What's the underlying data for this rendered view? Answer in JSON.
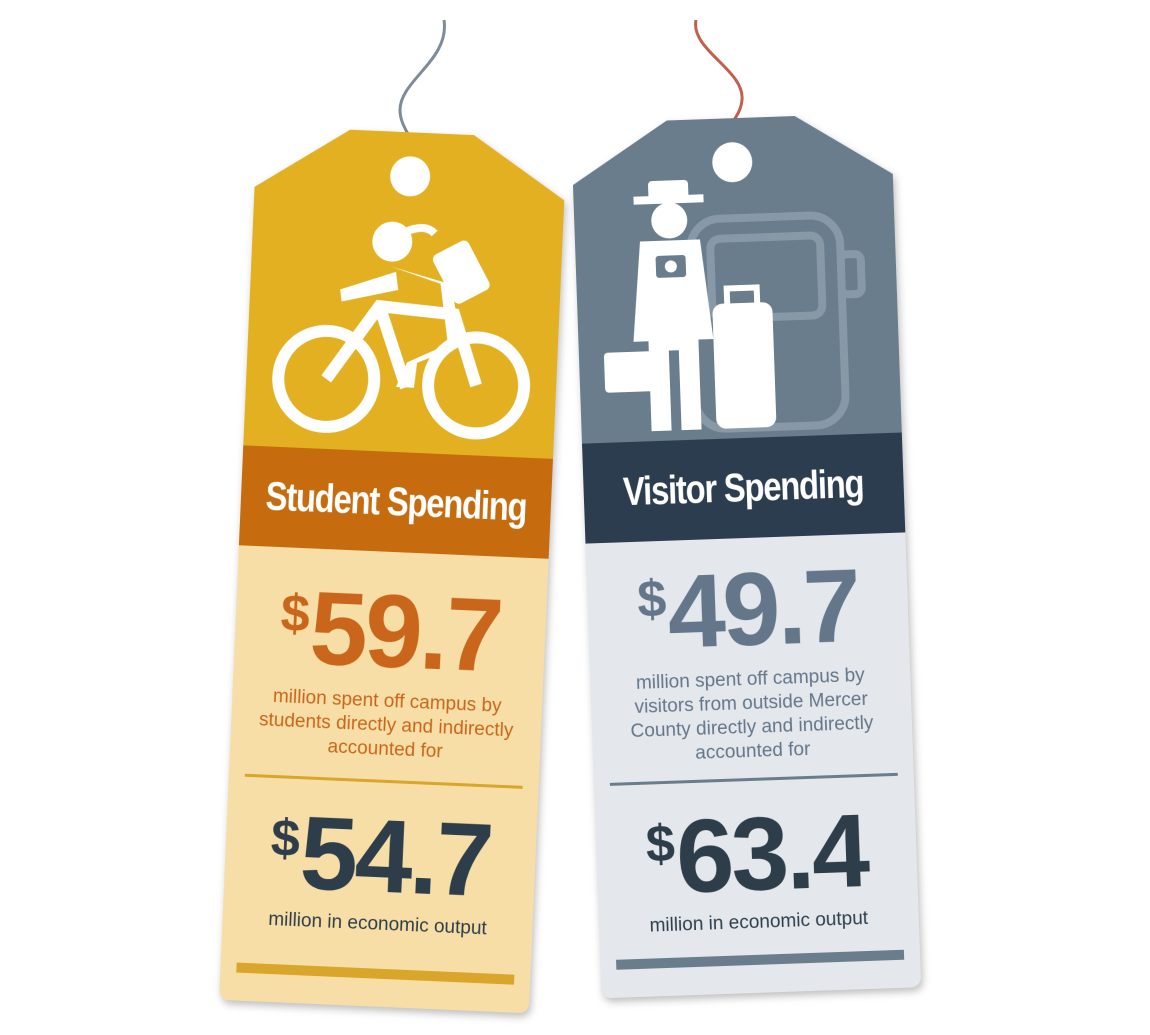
{
  "tags": [
    {
      "title": "Student Spending",
      "icon": "cyclist-icon",
      "amount1": {
        "currency": "$",
        "value": "59.7"
      },
      "description1": "million spent off campus by students directly and indirectly accounted for",
      "amount2": {
        "currency": "$",
        "value": "54.7"
      },
      "description2": "million in economic output",
      "colors": {
        "top": "#E3B022",
        "band": "#C66C0F",
        "lower": "#F6DEA6",
        "accent_text": "#C9661B",
        "dark_text": "#2D3E4A",
        "rule": "#D9A52A",
        "string": "#7E8C99"
      }
    },
    {
      "title": "Visitor Spending",
      "icon": "tourist-with-luggage-icon",
      "amount1": {
        "currency": "$",
        "value": "49.7"
      },
      "description1": "million spent off campus by visitors from outside Mercer County directly and indirectly accounted for",
      "amount2": {
        "currency": "$",
        "value": "63.4"
      },
      "description2": "million in economic output",
      "colors": {
        "top": "#6A7D8D",
        "band": "#2B3D4F",
        "lower": "#E4E7EC",
        "accent_text": "#64768A",
        "dark_text": "#2D3E4A",
        "rule": "#6A7D8D",
        "string": "#C0614E"
      }
    }
  ]
}
